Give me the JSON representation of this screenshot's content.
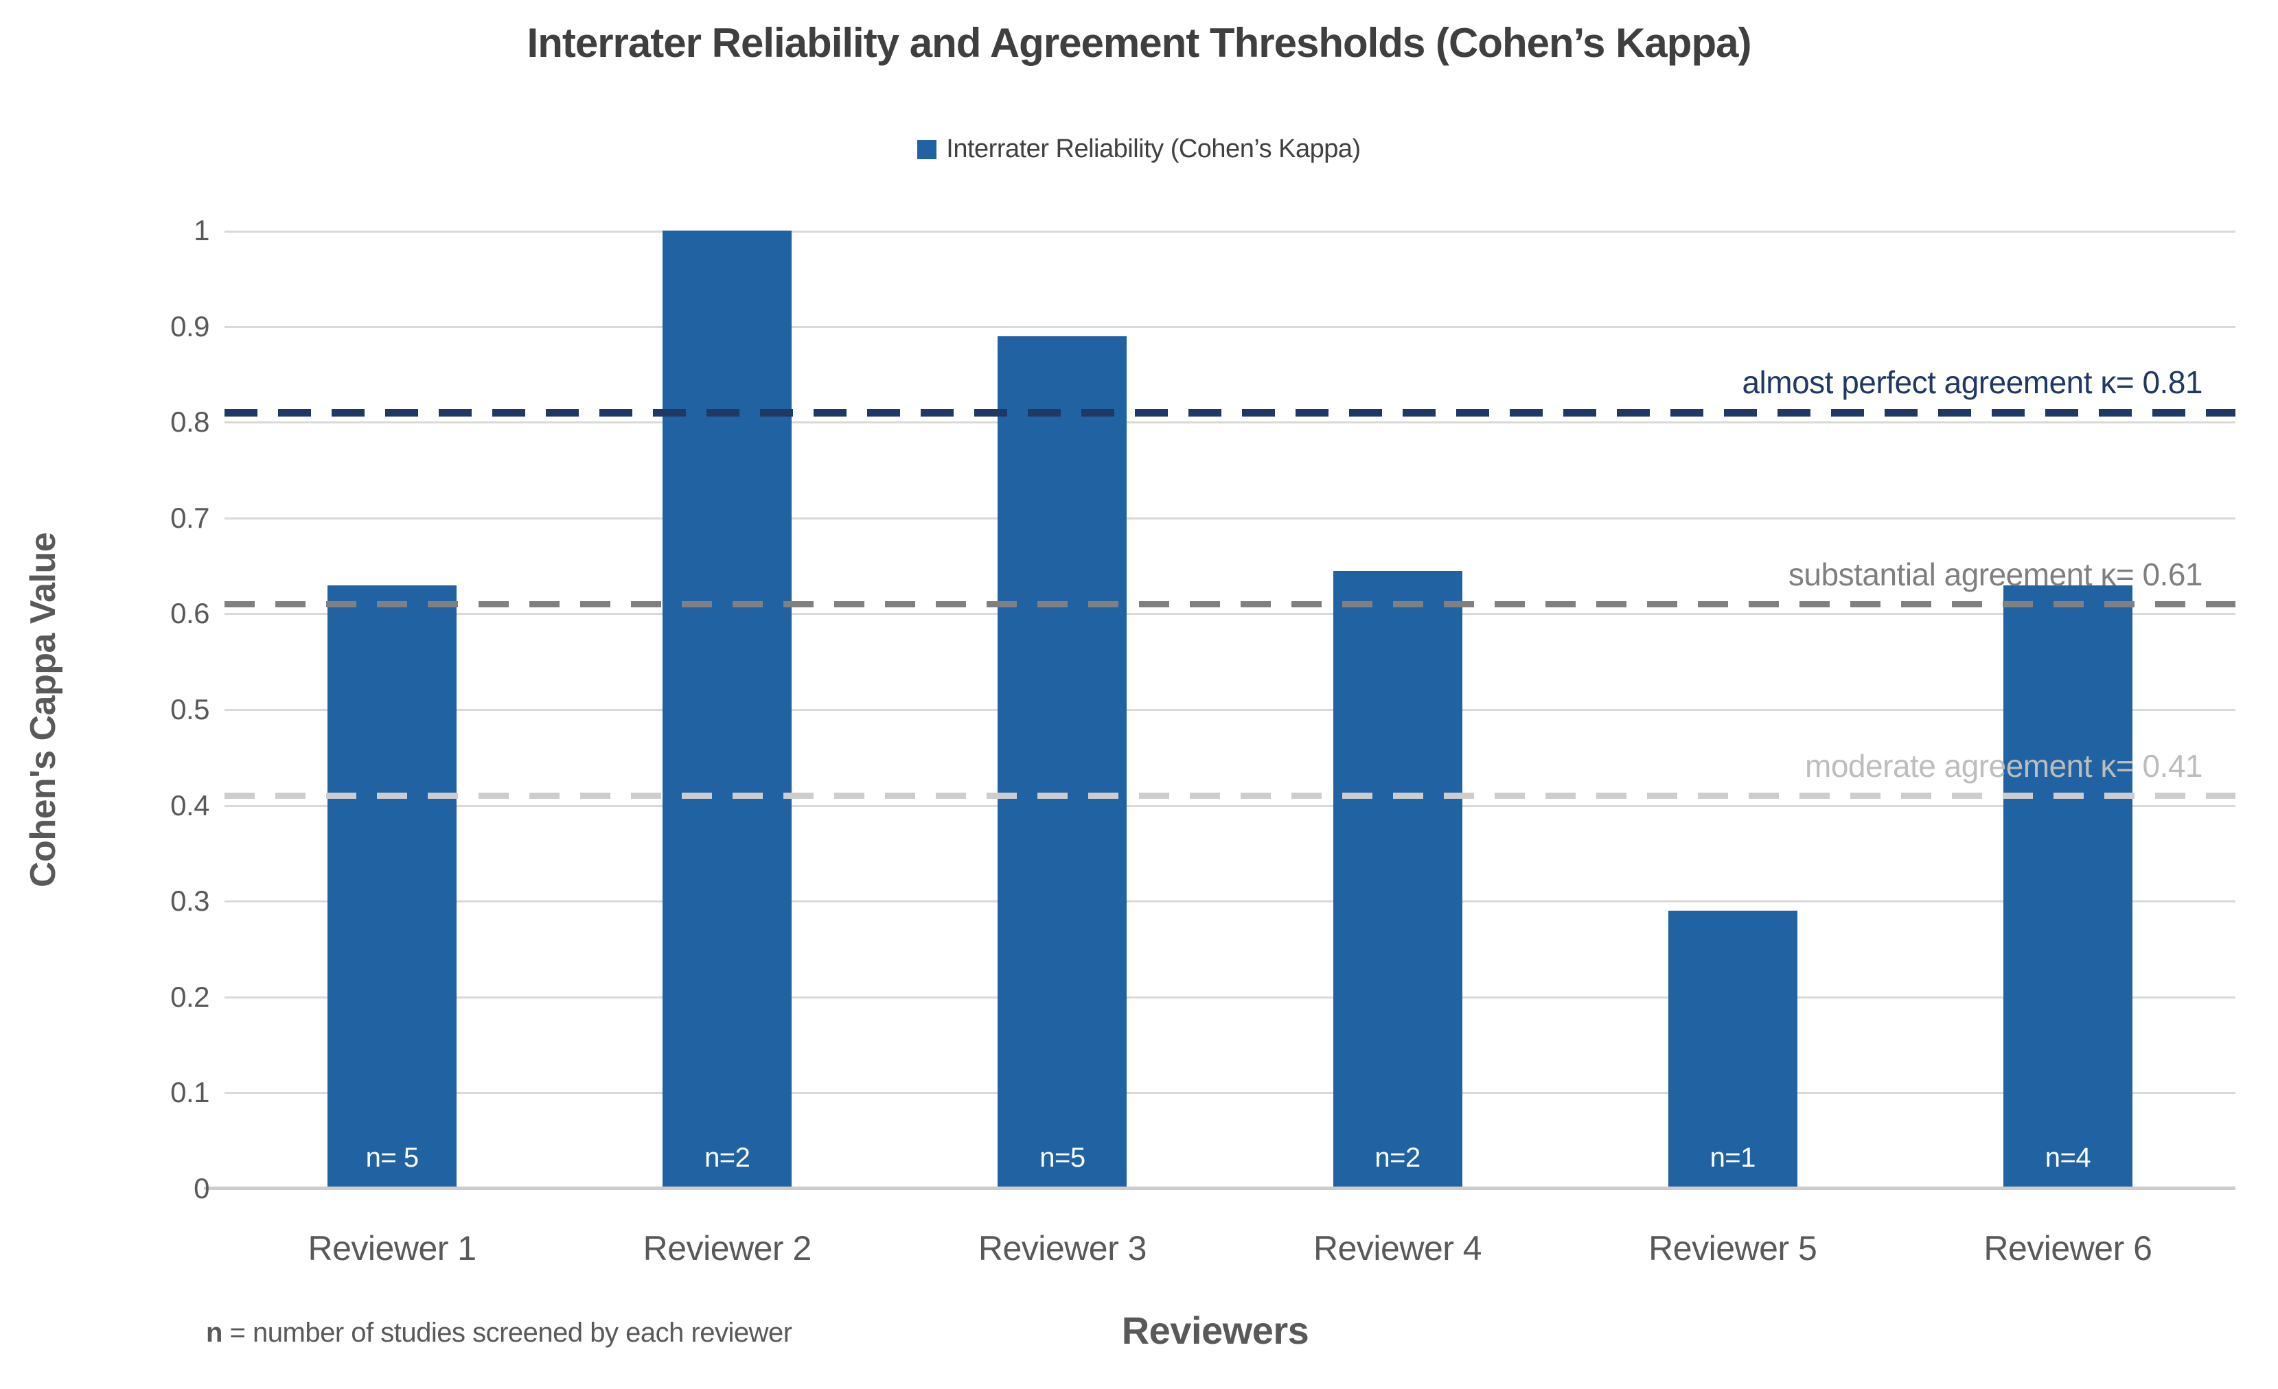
{
  "chart_data": {
    "type": "bar",
    "title": "Interrater Reliability and Agreement Thresholds (Cohen’s Kappa)",
    "legend": {
      "label": "Interrater Reliability (Cohen’s Kappa)"
    },
    "xlabel": "Reviewers",
    "ylabel": "Cohen's Cappa Value",
    "ylim": [
      0,
      1
    ],
    "grid": true,
    "legend_position": "top",
    "yticks": [
      {
        "label": "1",
        "value": 1.0
      },
      {
        "label": "0.9",
        "value": 0.9
      },
      {
        "label": "0.8",
        "value": 0.8
      },
      {
        "label": "0.7",
        "value": 0.7
      },
      {
        "label": "0.6",
        "value": 0.6
      },
      {
        "label": "0.5",
        "value": 0.5
      },
      {
        "label": "0.4",
        "value": 0.4
      },
      {
        "label": "0.3",
        "value": 0.3
      },
      {
        "label": "0.2",
        "value": 0.2
      },
      {
        "label": "0.1",
        "value": 0.1
      },
      {
        "label": "0",
        "value": 0.0
      }
    ],
    "categories": [
      "Reviewer 1",
      "Reviewer 2",
      "Reviewer 3",
      "Reviewer 4",
      "Reviewer 5",
      "Reviewer 6"
    ],
    "values": [
      0.63,
      1.0,
      0.89,
      0.645,
      0.29,
      0.63
    ],
    "bar_labels": [
      "n= 5",
      "n=2",
      "n=5",
      "n=2",
      "n=1",
      "n=4"
    ],
    "bar_color": "#2163a2",
    "thresholds": [
      {
        "label": "almost perfect agreement κ= 0.81",
        "value": 0.81,
        "line_color": "#1f3864",
        "text_color": "#1f3864",
        "thickness": 11,
        "dash": 48,
        "gap": 30
      },
      {
        "label": "substantial agreement κ= 0.61",
        "value": 0.61,
        "line_color": "#808080",
        "text_color": "#7f7f7f",
        "thickness": 9,
        "dash": 44,
        "gap": 30
      },
      {
        "label": "moderate agreement κ= 0.41",
        "value": 0.41,
        "line_color": "#cdcdcd",
        "text_color": "#bdbdbd",
        "thickness": 9,
        "dash": 44,
        "gap": 30
      }
    ],
    "footnote": {
      "bold": "n",
      "text": " = number of studies screened by each reviewer"
    },
    "colors": {
      "title_text": "#3f3f3f",
      "axis_text": "#595959",
      "gridline": "#d9d9d9",
      "axis_line": "#cccccc"
    }
  }
}
